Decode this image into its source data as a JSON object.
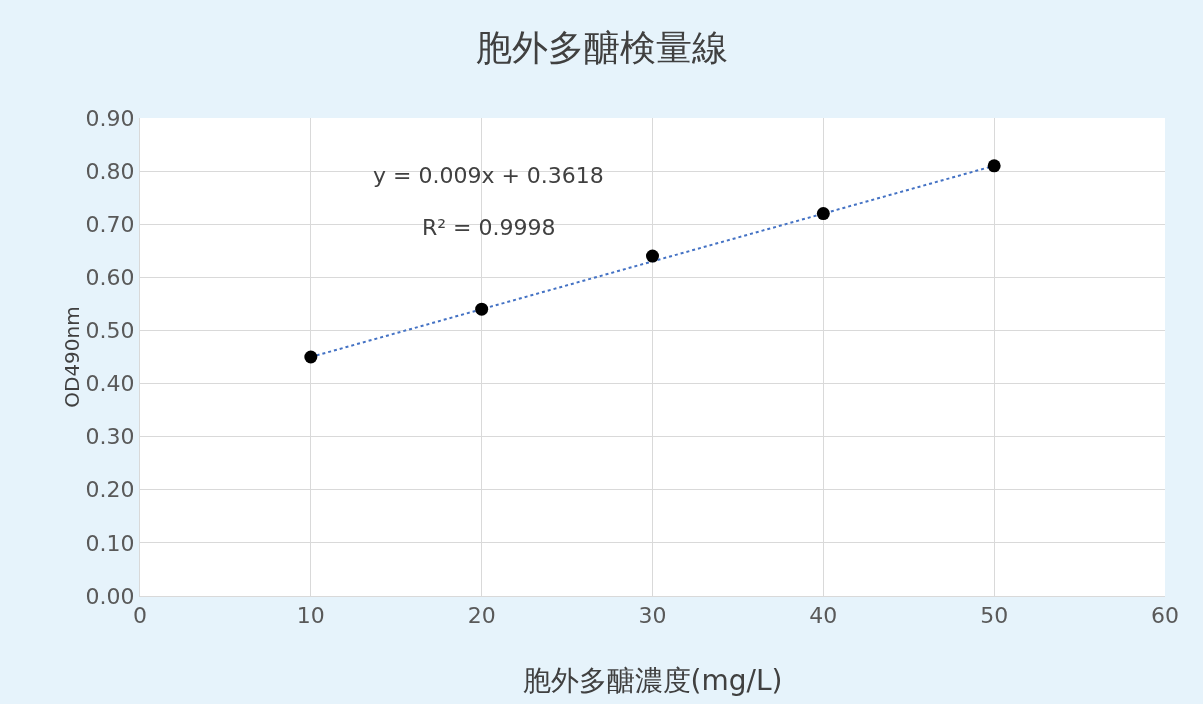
{
  "chart_data": {
    "type": "scatter",
    "title": "胞外多醣検量線",
    "xlabel": "胞外多醣濃度(mg/L)",
    "ylabel": "OD490nm",
    "series": [
      {
        "color": "#000000",
        "marker": "circle",
        "x": [
          10,
          20,
          30,
          40,
          50
        ],
        "values": [
          0.45,
          0.54,
          0.64,
          0.72,
          0.81
        ]
      },
      {
        "type": "line",
        "color": "#4472c4",
        "line_style": "dotted",
        "marker": "none",
        "x": [
          10,
          50
        ],
        "values": [
          0.45,
          0.81
        ]
      }
    ],
    "grid": true,
    "legend": false,
    "xlim": [
      0,
      60
    ],
    "xticks": [
      0,
      10,
      20,
      30,
      40,
      50,
      60
    ],
    "ylim": [
      0,
      0.9
    ],
    "yticks": [
      {
        "value": 0,
        "label": "0.00"
      },
      {
        "value": 0.1,
        "label": "0.10"
      },
      {
        "value": 0.2,
        "label": "0.20"
      },
      {
        "value": 0.3,
        "label": "0.30"
      },
      {
        "value": 0.4,
        "label": "0.40"
      },
      {
        "value": 0.5,
        "label": "0.50"
      },
      {
        "value": 0.6,
        "label": "0.60"
      },
      {
        "value": 0.7,
        "label": "0.70"
      },
      {
        "value": 0.8,
        "label": "0.80"
      },
      {
        "value": 0.9,
        "label": "0.90"
      }
    ],
    "annotations": [
      "y = 0.009x + 0.3618",
      "R² = 0.9998"
    ]
  }
}
